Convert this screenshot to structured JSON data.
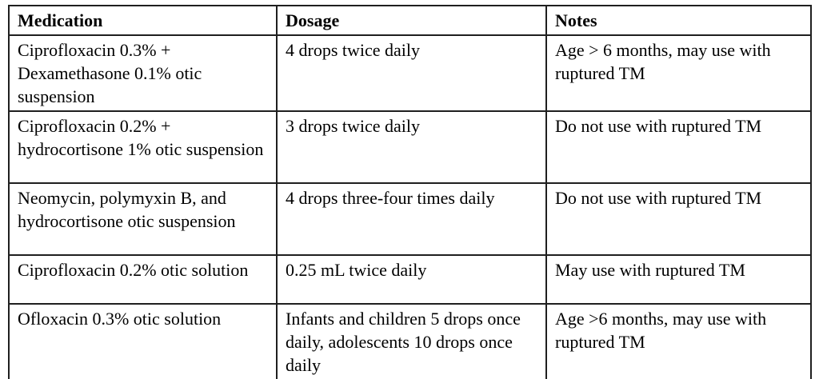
{
  "table": {
    "columns": {
      "medication": "Medication",
      "dosage": "Dosage",
      "notes": "Notes"
    },
    "rows": [
      {
        "medication": "Ciprofloxacin 0.3% + Dexamethasone 0.1% otic suspension",
        "dosage": "4 drops twice daily",
        "notes": "Age > 6 months, may use with ruptured TM"
      },
      {
        "medication": "Ciprofloxacin 0.2% + hydrocortisone 1% otic suspension",
        "dosage": "3 drops twice daily",
        "notes": "Do not use with ruptured TM"
      },
      {
        "medication": "Neomycin, polymyxin B, and hydrocortisone otic suspension",
        "dosage": "4 drops three-four times daily",
        "notes": "Do not use with ruptured TM"
      },
      {
        "medication": "Ciprofloxacin 0.2% otic solution",
        "dosage": "0.25 mL twice daily",
        "notes": "May use with ruptured TM"
      },
      {
        "medication": "Ofloxacin 0.3% otic solution",
        "dosage": "Infants and children 5 drops once daily, adolescents 10 drops once daily",
        "notes": "Age >6 months, may use with ruptured TM"
      }
    ],
    "colors": {
      "border": "#1f1f1f",
      "text": "#000000",
      "background": "#ffffff"
    }
  }
}
